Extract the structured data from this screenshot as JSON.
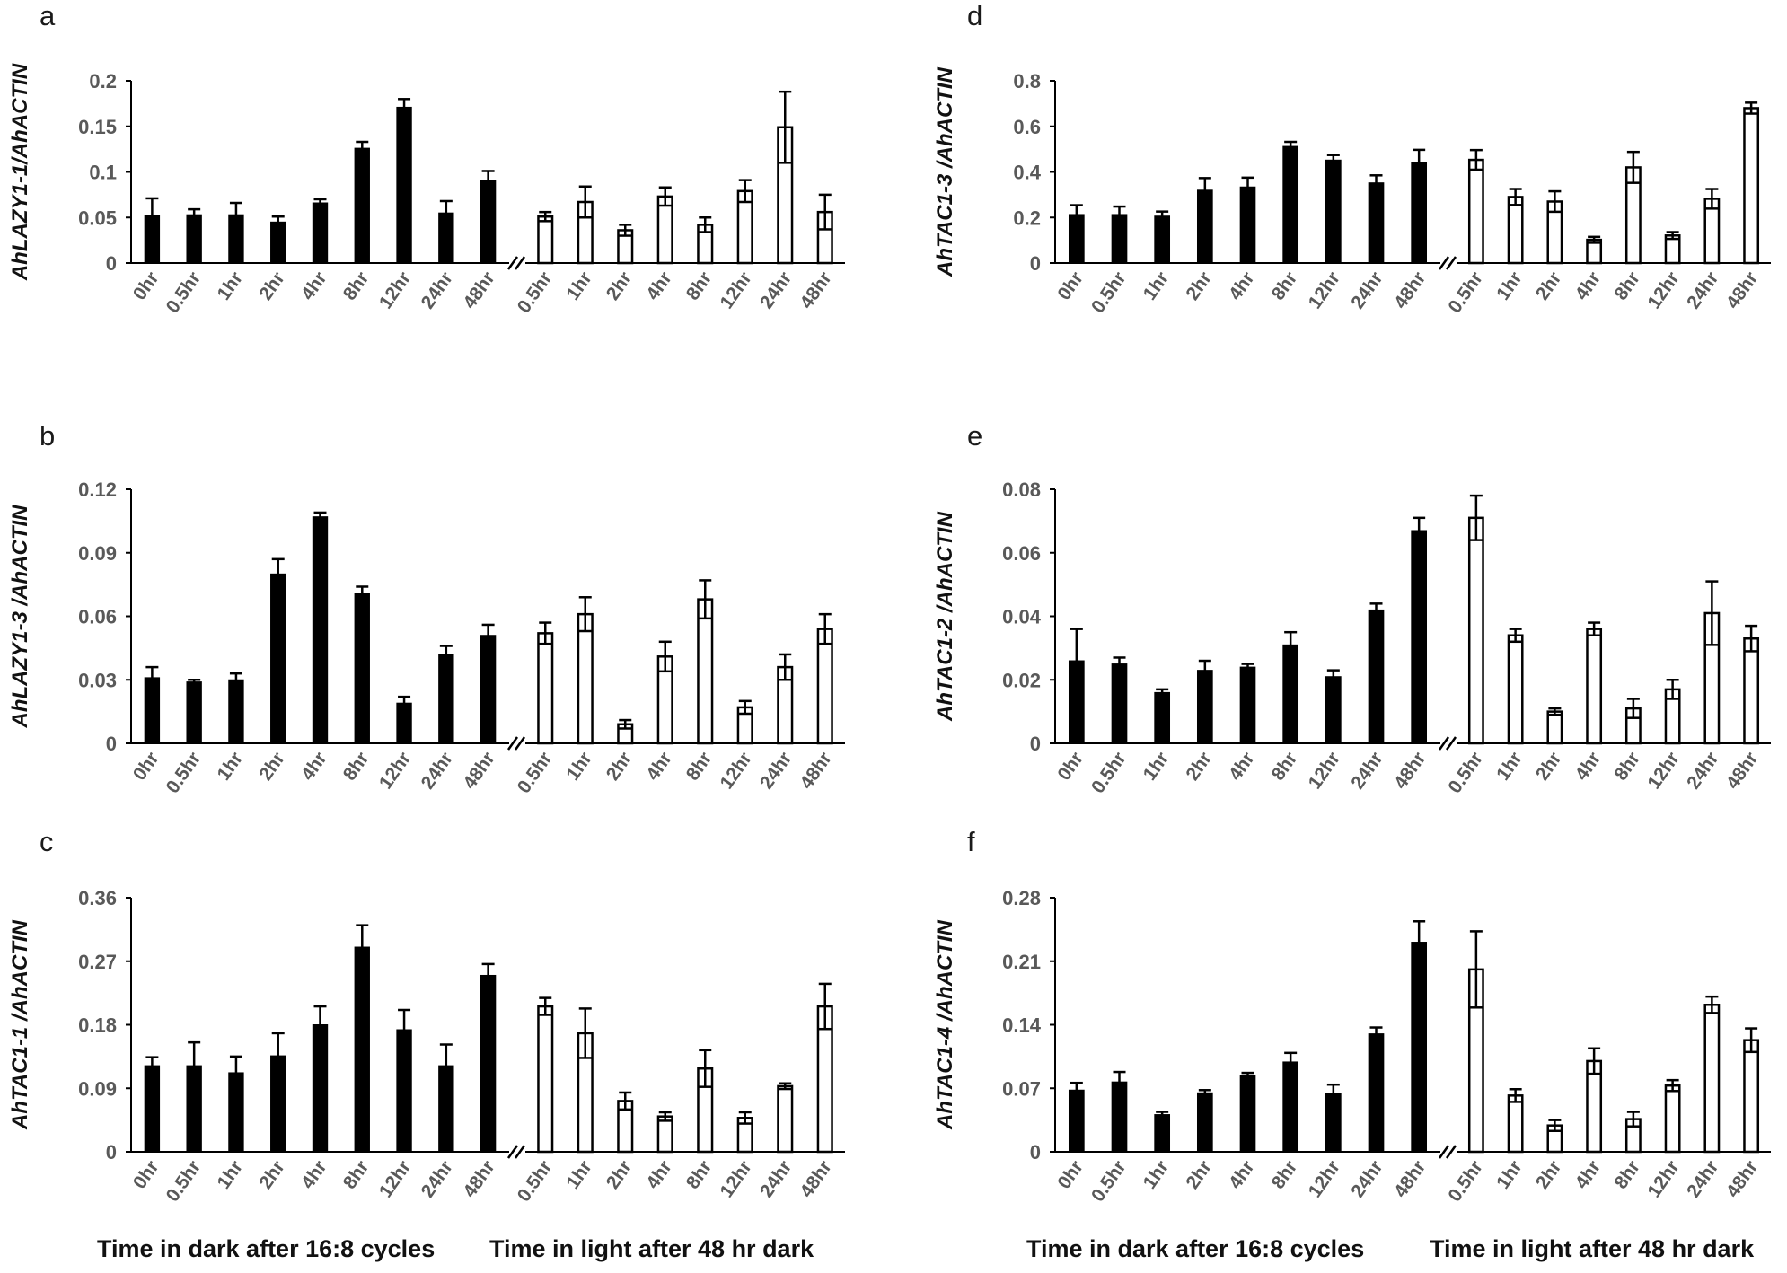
{
  "figure": {
    "xcaptions": {
      "left_dark": "Time in dark after 16:8  cycles",
      "left_light": "Time in light after 48  hr dark",
      "right_dark": "Time in dark after 16:8  cycles",
      "right_light": "Time in light after 48  hr dark"
    }
  },
  "colors": {
    "dark_bar": "#000000",
    "light_bar": "#ffffff",
    "axis": "#000000",
    "tick_text": "#595959"
  },
  "chart_data": [
    {
      "panel": "a",
      "type": "bar",
      "ylabel": "AhLAZY1-1/AhACTIN",
      "ylim": [
        0,
        0.2
      ],
      "yticks": [
        "0",
        "0.05",
        "0.1",
        "0.15",
        "0.2"
      ],
      "groups": [
        {
          "fill": "dark",
          "categories": [
            "0hr",
            "0.5hr",
            "1hr",
            "2hr",
            "4hr",
            "8hr",
            "12hr",
            "24hr",
            "48hr"
          ],
          "values": [
            0.052,
            0.053,
            0.053,
            0.045,
            0.066,
            0.126,
            0.171,
            0.055,
            0.091
          ],
          "errors": [
            0.019,
            0.006,
            0.013,
            0.006,
            0.004,
            0.007,
            0.009,
            0.013,
            0.01
          ]
        },
        {
          "fill": "light",
          "categories": [
            "0.5hr",
            "1hr",
            "2hr",
            "4hr",
            "8hr",
            "12hr",
            "24hr",
            "48hr"
          ],
          "values": [
            0.051,
            0.067,
            0.036,
            0.073,
            0.042,
            0.079,
            0.149,
            0.056
          ],
          "errors": [
            0.005,
            0.017,
            0.006,
            0.01,
            0.008,
            0.012,
            0.039,
            0.019
          ]
        }
      ]
    },
    {
      "panel": "b",
      "type": "bar",
      "ylabel": "AhLAZY1-3 /AhACTIN",
      "ylim": [
        0,
        0.12
      ],
      "yticks": [
        "0",
        "0.03",
        "0.06",
        "0.09",
        "0.12"
      ],
      "groups": [
        {
          "fill": "dark",
          "categories": [
            "0hr",
            "0.5hr",
            "1hr",
            "2hr",
            "4hr",
            "8hr",
            "12hr",
            "24hr",
            "48hr"
          ],
          "values": [
            0.031,
            0.029,
            0.03,
            0.08,
            0.107,
            0.071,
            0.019,
            0.042,
            0.051
          ],
          "errors": [
            0.005,
            0.001,
            0.003,
            0.007,
            0.002,
            0.003,
            0.003,
            0.004,
            0.005
          ]
        },
        {
          "fill": "light",
          "categories": [
            "0.5hr",
            "1hr",
            "2hr",
            "4hr",
            "8hr",
            "12hr",
            "24hr",
            "48hr"
          ],
          "values": [
            0.052,
            0.061,
            0.009,
            0.041,
            0.068,
            0.017,
            0.036,
            0.054
          ],
          "errors": [
            0.005,
            0.008,
            0.002,
            0.007,
            0.009,
            0.003,
            0.006,
            0.007
          ]
        }
      ]
    },
    {
      "panel": "c",
      "type": "bar",
      "ylabel": "AhTAC1-1 /AhACTIN",
      "ylim": [
        0,
        0.36
      ],
      "yticks": [
        "0",
        "0.09",
        "0.18",
        "0.27",
        "0.36"
      ],
      "groups": [
        {
          "fill": "dark",
          "categories": [
            "0hr",
            "0.5hr",
            "1hr",
            "2hr",
            "4hr",
            "8hr",
            "12hr",
            "24hr",
            "48hr"
          ],
          "values": [
            0.122,
            0.122,
            0.112,
            0.136,
            0.18,
            0.29,
            0.173,
            0.122,
            0.25
          ],
          "errors": [
            0.012,
            0.033,
            0.023,
            0.032,
            0.026,
            0.031,
            0.028,
            0.03,
            0.016
          ]
        },
        {
          "fill": "light",
          "categories": [
            "0.5hr",
            "1hr",
            "2hr",
            "4hr",
            "8hr",
            "12hr",
            "24hr",
            "48hr"
          ],
          "values": [
            0.206,
            0.168,
            0.072,
            0.05,
            0.118,
            0.048,
            0.093,
            0.206
          ],
          "errors": [
            0.012,
            0.035,
            0.012,
            0.006,
            0.026,
            0.008,
            0.004,
            0.032
          ]
        }
      ]
    },
    {
      "panel": "d",
      "type": "bar",
      "ylabel": "AhTAC1-3 /AhACTIN",
      "ylim": [
        0,
        0.8
      ],
      "yticks": [
        "0",
        "0.2",
        "0.4",
        "0.6",
        "0.8"
      ],
      "groups": [
        {
          "fill": "dark",
          "categories": [
            "0hr",
            "0.5hr",
            "1hr",
            "2hr",
            "4hr",
            "8hr",
            "12hr",
            "24hr",
            "48hr"
          ],
          "values": [
            0.213,
            0.213,
            0.206,
            0.32,
            0.334,
            0.512,
            0.452,
            0.352,
            0.442
          ],
          "errors": [
            0.041,
            0.035,
            0.02,
            0.053,
            0.041,
            0.02,
            0.022,
            0.033,
            0.055
          ]
        },
        {
          "fill": "light",
          "categories": [
            "0.5hr",
            "1hr",
            "2hr",
            "4hr",
            "8hr",
            "12hr",
            "24hr",
            "48hr"
          ],
          "values": [
            0.453,
            0.29,
            0.27,
            0.102,
            0.42,
            0.121,
            0.282,
            0.68
          ],
          "errors": [
            0.043,
            0.035,
            0.045,
            0.013,
            0.068,
            0.015,
            0.043,
            0.024
          ]
        }
      ]
    },
    {
      "panel": "e",
      "type": "bar",
      "ylabel": "AhTAC1-2 /AhACTIN",
      "ylim": [
        0,
        0.08
      ],
      "yticks": [
        "0",
        "0.02",
        "0.04",
        "0.06",
        "0.08"
      ],
      "groups": [
        {
          "fill": "dark",
          "categories": [
            "0hr",
            "0.5hr",
            "1hr",
            "2hr",
            "4hr",
            "8hr",
            "12hr",
            "24hr",
            "48hr"
          ],
          "values": [
            0.026,
            0.025,
            0.016,
            0.023,
            0.024,
            0.031,
            0.021,
            0.042,
            0.067
          ],
          "errors": [
            0.01,
            0.002,
            0.001,
            0.003,
            0.001,
            0.004,
            0.002,
            0.002,
            0.004
          ]
        },
        {
          "fill": "light",
          "categories": [
            "0.5hr",
            "1hr",
            "2hr",
            "4hr",
            "8hr",
            "12hr",
            "24hr",
            "48hr"
          ],
          "values": [
            0.071,
            0.034,
            0.01,
            0.036,
            0.011,
            0.017,
            0.041,
            0.033
          ],
          "errors": [
            0.007,
            0.002,
            0.001,
            0.002,
            0.003,
            0.003,
            0.01,
            0.004
          ]
        }
      ]
    },
    {
      "panel": "f",
      "type": "bar",
      "ylabel": "AhTAC1-4 /AhACTIN",
      "ylim": [
        0,
        0.28
      ],
      "yticks": [
        "0",
        "0.07",
        "0.14",
        "0.21",
        "0.28"
      ],
      "groups": [
        {
          "fill": "dark",
          "categories": [
            "0hr",
            "0.5hr",
            "1hr",
            "2hr",
            "4hr",
            "8hr",
            "12hr",
            "24hr",
            "48hr"
          ],
          "values": [
            0.068,
            0.077,
            0.041,
            0.065,
            0.084,
            0.099,
            0.064,
            0.13,
            0.231
          ],
          "errors": [
            0.008,
            0.011,
            0.003,
            0.003,
            0.003,
            0.01,
            0.01,
            0.007,
            0.023
          ]
        },
        {
          "fill": "light",
          "categories": [
            "0.5hr",
            "1hr",
            "2hr",
            "4hr",
            "8hr",
            "12hr",
            "24hr",
            "48hr"
          ],
          "values": [
            0.201,
            0.062,
            0.029,
            0.1,
            0.036,
            0.073,
            0.162,
            0.123
          ],
          "errors": [
            0.042,
            0.007,
            0.006,
            0.014,
            0.008,
            0.006,
            0.009,
            0.013
          ]
        }
      ]
    }
  ]
}
